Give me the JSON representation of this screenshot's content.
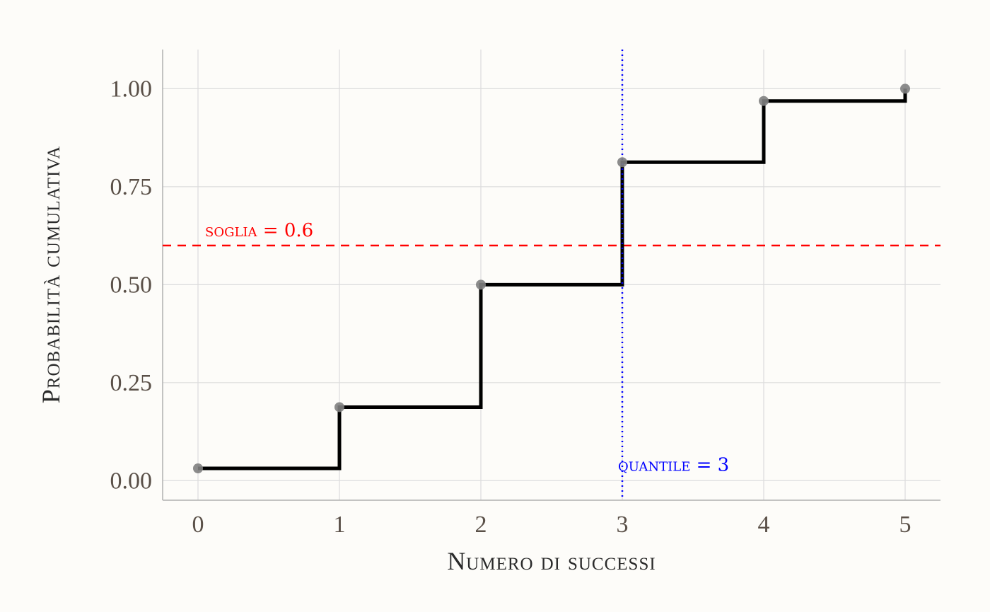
{
  "chart_data": {
    "type": "line",
    "subtype": "step",
    "title": "",
    "xlabel": "Numero di successi",
    "ylabel": "Probabilità cumulativa",
    "x": [
      0,
      1,
      2,
      3,
      4,
      5
    ],
    "y": [
      0.03125,
      0.1875,
      0.5,
      0.8125,
      0.96875,
      1.0
    ],
    "xlim": [
      -0.25,
      5.25
    ],
    "ylim": [
      -0.05,
      1.1
    ],
    "x_ticks": [
      "0",
      "1",
      "2",
      "3",
      "4",
      "5"
    ],
    "y_ticks": [
      "0.00",
      "0.25",
      "0.50",
      "0.75",
      "1.00"
    ],
    "y_tick_values": [
      0,
      0.25,
      0.5,
      0.75,
      1.0
    ],
    "grid": true,
    "hline": {
      "value": 0.6,
      "label": "soglia = 0.6",
      "color": "#ff0000",
      "style": "dashed"
    },
    "vline": {
      "value": 3,
      "label": "quantile = 3",
      "color": "#0000ff",
      "style": "dotted"
    },
    "step_color": "#000000",
    "point_color": "#808080"
  }
}
